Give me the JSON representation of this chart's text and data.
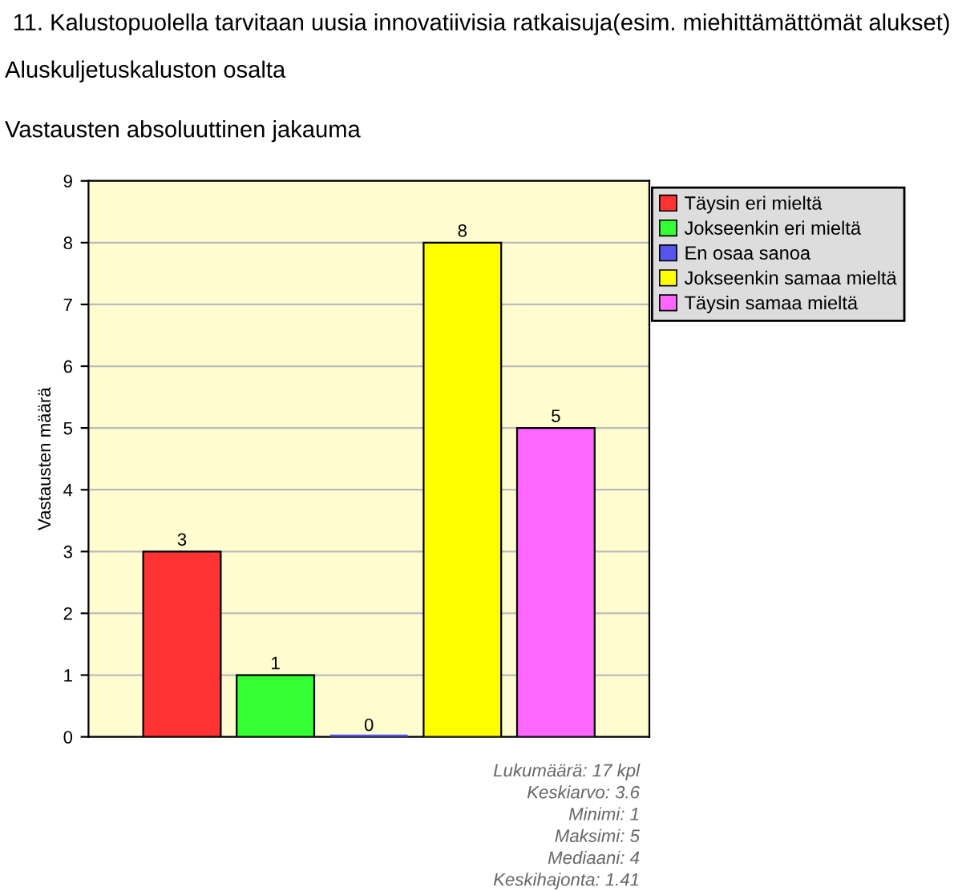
{
  "chart_data": {
    "type": "bar",
    "title": "11. Kalustopuolella tarvitaan uusia innovatiivisia ratkaisuja(esim. miehittämättömät alukset)",
    "subtitle": "Aluskuljetuskaluston osalta",
    "ylabel": "Vastausten määrä",
    "categories": [
      null,
      null,
      null,
      null,
      null
    ],
    "series": [
      {
        "name": "Täysin eri mieltä",
        "color": "#ff3333",
        "values": [
          3,
          null,
          null,
          null,
          null
        ]
      },
      {
        "name": "Jokseenkin eri mieltä",
        "color": "#33ff33",
        "values": [
          null,
          1,
          null,
          null,
          null
        ]
      },
      {
        "name": "En osaa sanoa",
        "color": "#5555ee",
        "values": [
          null,
          null,
          0,
          null,
          null
        ]
      },
      {
        "name": "Jokseenkin samaa mieltä",
        "color": "#ffff00",
        "values": [
          null,
          null,
          null,
          8,
          null
        ]
      },
      {
        "name": "Täysin samaa mieltä",
        "color": "#ff66ff",
        "values": [
          null,
          null,
          null,
          null,
          5
        ]
      }
    ],
    "ylim": [
      0,
      9
    ],
    "yticks": [
      0,
      1,
      2,
      3,
      4,
      5,
      6,
      7,
      8,
      9
    ],
    "grid": "y",
    "legend": "top right",
    "data_labels": true,
    "annotations": [
      "Vastausten absoluuttinen jakauma",
      "Lukumäärä: 17 kpl",
      "Keskiarvo: 3.6",
      "Minimi: 1",
      "Maksimi: 5",
      "Mediaani: 4",
      "Keskihajonta: 1.41"
    ]
  }
}
